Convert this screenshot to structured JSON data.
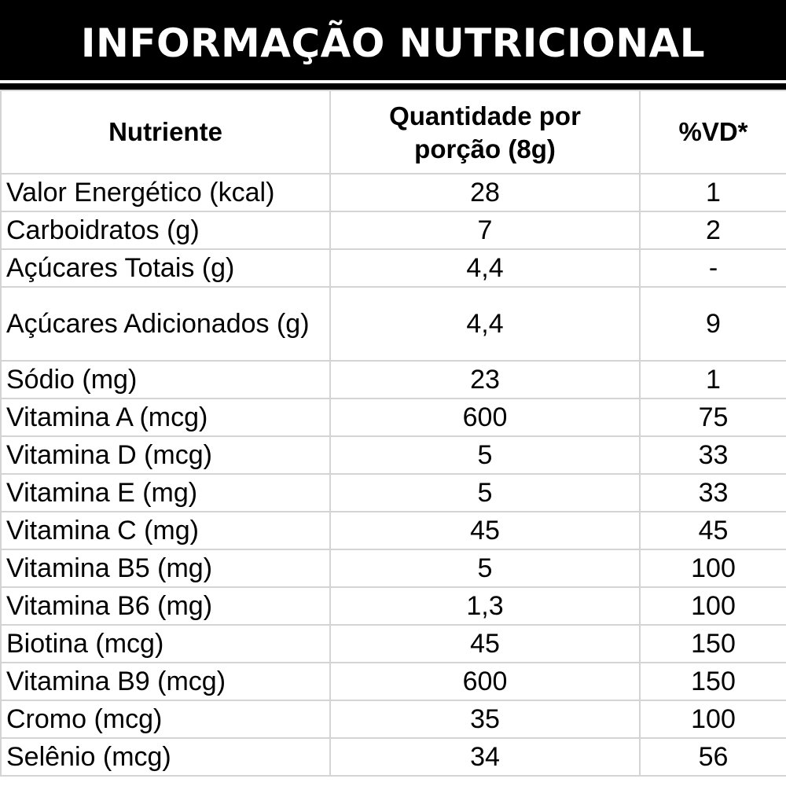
{
  "title": "INFORMAÇÃO NUTRICIONAL",
  "header": {
    "nutrient": "Nutriente",
    "quantity_line1": "Quantidade por",
    "quantity_line2": "porção (8g)",
    "vd": "%VD*"
  },
  "rows": [
    {
      "nutrient": "Valor Energético (kcal)",
      "quantity": "28",
      "vd": "1"
    },
    {
      "nutrient": "Carboidratos (g)",
      "quantity": "7",
      "vd": "2"
    },
    {
      "nutrient": "Açúcares Totais (g)",
      "quantity": "4,4",
      "vd": "-"
    },
    {
      "nutrient": "Açúcares Adicionados (g)",
      "quantity": "4,4",
      "vd": "9"
    },
    {
      "nutrient": "Sódio (mg)",
      "quantity": "23",
      "vd": "1"
    },
    {
      "nutrient": "Vitamina A (mcg)",
      "quantity": "600",
      "vd": "75"
    },
    {
      "nutrient": "Vitamina D (mcg)",
      "quantity": "5",
      "vd": "33"
    },
    {
      "nutrient": "Vitamina E (mg)",
      "quantity": "5",
      "vd": "33"
    },
    {
      "nutrient": "Vitamina C (mg)",
      "quantity": "45",
      "vd": "45"
    },
    {
      "nutrient": "Vitamina B5 (mg)",
      "quantity": "5",
      "vd": "100"
    },
    {
      "nutrient": "Vitamina B6 (mg)",
      "quantity": "1,3",
      "vd": "100"
    },
    {
      "nutrient": "Biotina (mcg)",
      "quantity": "45",
      "vd": "150"
    },
    {
      "nutrient": "Vitamina B9 (mcg)",
      "quantity": "600",
      "vd": "150"
    },
    {
      "nutrient": "Cromo (mcg)",
      "quantity": "35",
      "vd": "100"
    },
    {
      "nutrient": "Selênio (mcg)",
      "quantity": "34",
      "vd": "56"
    }
  ],
  "colors": {
    "title_background": "#000000",
    "title_text": "#ffffff",
    "table_background": "#ffffff",
    "grid_lines": "#d4d4d4",
    "text": "#000000"
  }
}
